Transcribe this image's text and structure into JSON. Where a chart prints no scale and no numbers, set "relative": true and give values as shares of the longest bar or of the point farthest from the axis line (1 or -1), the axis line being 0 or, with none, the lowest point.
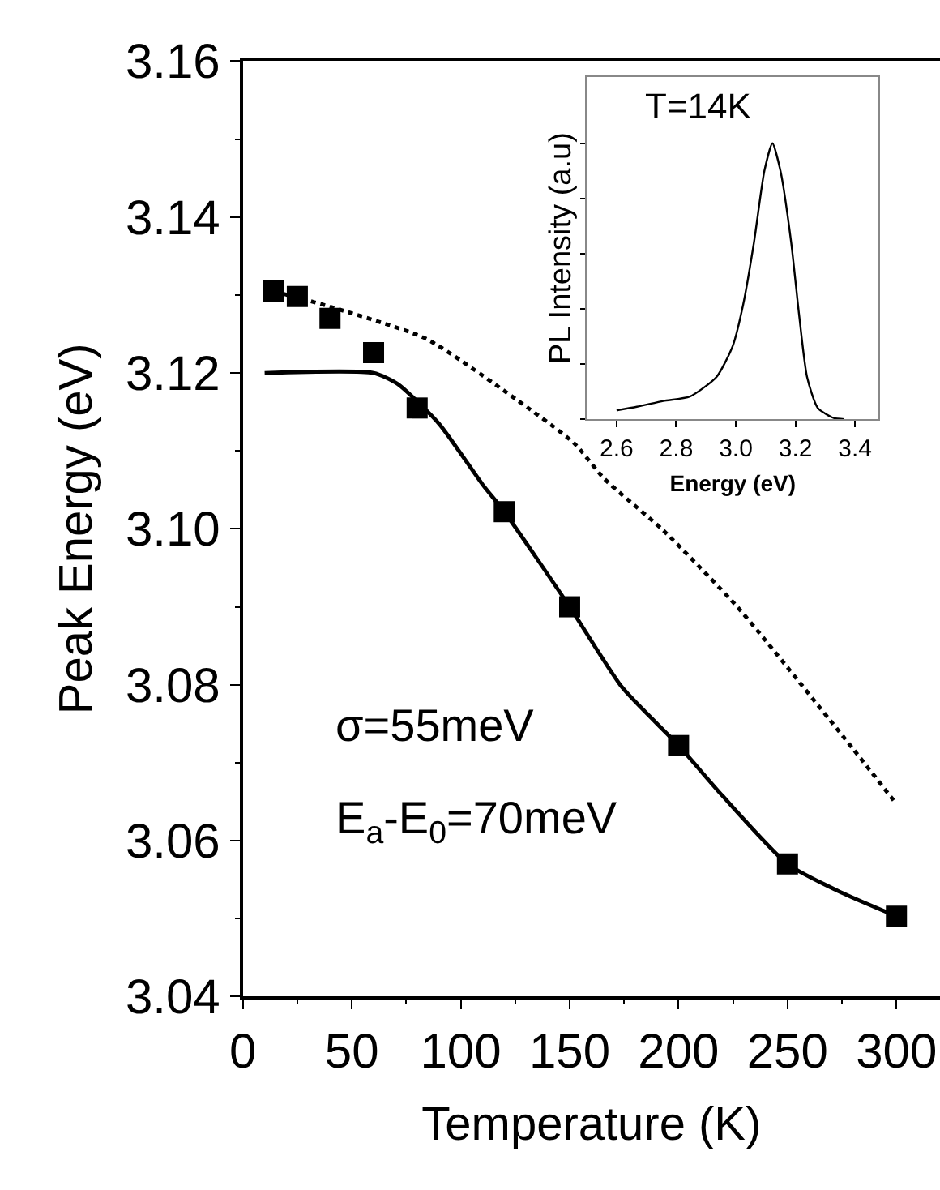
{
  "chart_data": [
    {
      "type": "scatter",
      "xlabel": "Temperature (K)",
      "ylabel": "Peak Energy (eV)",
      "xlim": [
        0,
        320
      ],
      "xticks": [
        0,
        50,
        100,
        150,
        200,
        250,
        300
      ],
      "ylim": [
        3.04,
        3.16
      ],
      "yticks": [
        3.04,
        3.06,
        3.08,
        {
          "value": 3.1,
          "label": "3.10"
        },
        3.12,
        3.14,
        3.16
      ],
      "annotations": [
        "σ=55meV",
        "E$_{a}$-E$_{0}$=70meV"
      ],
      "series": [
        {
          "type": "scatter",
          "marker": "square",
          "color": "#000000",
          "x": [
            14,
            25,
            40,
            60,
            80,
            120,
            150,
            200,
            250,
            300
          ],
          "values": [
            3.1305,
            3.1298,
            3.127,
            3.1226,
            3.1155,
            3.1022,
            3.09,
            3.0722,
            3.057,
            3.0503
          ]
        },
        {
          "type": "line",
          "line_style": "solid",
          "color": "#000000",
          "x": [
            10,
            60,
            71,
            90,
            110,
            120,
            150,
            174,
            200,
            220,
            250,
            275,
            300
          ],
          "values": [
            3.12,
            3.12,
            3.1186,
            3.1135,
            3.1057,
            3.1022,
            3.09,
            3.0797,
            3.0722,
            3.0658,
            3.057,
            3.0533,
            3.0503
          ]
        },
        {
          "type": "line",
          "line_style": "dotted",
          "color": "#000000",
          "x": [
            14,
            40,
            84,
            125,
            152,
            166,
            193,
            226,
            239,
            280,
            300
          ],
          "values": [
            3.1305,
            3.1285,
            3.1244,
            3.1167,
            3.111,
            3.1064,
            3.0998,
            3.0903,
            3.086,
            3.0718,
            3.0647
          ]
        }
      ]
    },
    {
      "type": "line",
      "xlabel": "Energy (eV)",
      "ylabel": "PL Intensity (a.u)",
      "relative": true,
      "xlim": [
        2.5,
        3.48
      ],
      "xticks": [
        {
          "value": 2.6,
          "label": "2.6"
        },
        {
          "value": 2.8,
          "label": "2.8"
        },
        {
          "value": 3.0,
          "label": "3.0"
        },
        {
          "value": 3.2,
          "label": "3.2"
        },
        {
          "value": 3.4,
          "label": "3.4"
        }
      ],
      "annotations": [
        "T=14K"
      ],
      "series": [
        {
          "color": "#000000",
          "x": [
            2.6,
            2.668,
            2.757,
            2.846,
            2.936,
            2.99,
            3.025,
            3.061,
            3.096,
            3.123,
            3.15,
            3.186,
            3.2125,
            3.239,
            3.275,
            3.329,
            3.364
          ],
          "values": [
            0.032,
            0.045,
            0.066,
            0.082,
            0.154,
            0.266,
            0.416,
            0.64,
            0.9,
            1,
            0.9,
            0.64,
            0.378,
            0.154,
            0.041,
            0.004,
            0
          ]
        }
      ]
    }
  ]
}
